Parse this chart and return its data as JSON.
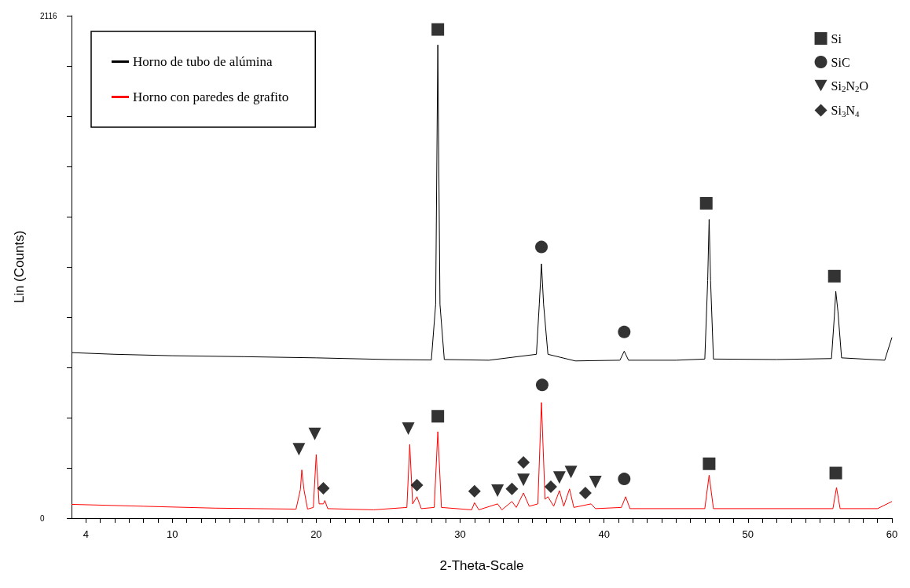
{
  "chart_data": {
    "type": "line",
    "xlabel": "2-Theta-Scale",
    "ylabel": "Lin (Counts)",
    "xlim": [
      3,
      60
    ],
    "ylim": [
      0,
      2116
    ],
    "xticks": [
      4,
      {
        "value": 5,
        "label": null
      },
      {
        "value": 6,
        "label": null
      },
      {
        "value": 7,
        "label": null
      },
      {
        "value": 8,
        "label": null
      },
      {
        "value": 9,
        "label": null
      },
      10,
      {
        "value": 11,
        "label": null
      },
      {
        "value": 12,
        "label": null
      },
      {
        "value": 13,
        "label": null
      },
      {
        "value": 14,
        "label": null
      },
      {
        "value": 15,
        "label": null
      },
      {
        "value": 16,
        "label": null
      },
      {
        "value": 17,
        "label": null
      },
      {
        "value": 18,
        "label": null
      },
      {
        "value": 19,
        "label": null
      },
      20,
      {
        "value": 21,
        "label": null
      },
      {
        "value": 22,
        "label": null
      },
      {
        "value": 23,
        "label": null
      },
      {
        "value": 24,
        "label": null
      },
      {
        "value": 25,
        "label": null
      },
      {
        "value": 26,
        "label": null
      },
      {
        "value": 27,
        "label": null
      },
      {
        "value": 28,
        "label": null
      },
      {
        "value": 29,
        "label": null
      },
      30,
      {
        "value": 31,
        "label": null
      },
      {
        "value": 32,
        "label": null
      },
      {
        "value": 33,
        "label": null
      },
      {
        "value": 34,
        "label": null
      },
      {
        "value": 35,
        "label": null
      },
      {
        "value": 36,
        "label": null
      },
      {
        "value": 37,
        "label": null
      },
      {
        "value": 38,
        "label": null
      },
      {
        "value": 39,
        "label": null
      },
      40,
      {
        "value": 41,
        "label": null
      },
      {
        "value": 42,
        "label": null
      },
      {
        "value": 43,
        "label": null
      },
      {
        "value": 44,
        "label": null
      },
      {
        "value": 45,
        "label": null
      },
      {
        "value": 46,
        "label": null
      },
      {
        "value": 47,
        "label": null
      },
      {
        "value": 48,
        "label": null
      },
      {
        "value": 49,
        "label": null
      },
      50,
      {
        "value": 51,
        "label": null
      },
      {
        "value": 52,
        "label": null
      },
      {
        "value": 53,
        "label": null
      },
      {
        "value": 54,
        "label": null
      },
      {
        "value": 55,
        "label": null
      },
      {
        "value": 56,
        "label": null
      },
      {
        "value": 57,
        "label": null
      },
      {
        "value": 58,
        "label": null
      },
      {
        "value": 59,
        "label": null
      },
      60
    ],
    "yticks": [
      0,
      {
        "value": 211.6,
        "label": null
      },
      {
        "value": 423.2,
        "label": null
      },
      {
        "value": 634.8,
        "label": null
      },
      {
        "value": 846.4,
        "label": null
      },
      {
        "value": 1058,
        "label": null
      },
      {
        "value": 1269.6,
        "label": null
      },
      {
        "value": 1481.2,
        "label": null
      },
      {
        "value": 1692.8,
        "label": null
      },
      {
        "value": 1904.4,
        "label": null
      },
      2116
    ],
    "grid": false,
    "legend": "top left",
    "series": [
      {
        "name": "Horno de tubo de alúmina",
        "color": "#000000",
        "x": [
          3,
          6,
          10,
          15,
          20,
          25,
          28.0,
          28.3,
          28.45,
          28.6,
          28.9,
          32,
          35.3,
          35.5,
          35.65,
          35.8,
          36.1,
          38,
          41.1,
          41.4,
          41.7,
          45,
          47.0,
          47.2,
          47.3,
          47.4,
          47.6,
          52,
          55.8,
          56.0,
          56.1,
          56.25,
          56.5,
          59.5,
          60
        ],
        "values": [
          697,
          690,
          684,
          680,
          675,
          668,
          666,
          900,
          1993,
          900,
          668,
          665,
          690,
          900,
          1071,
          900,
          690,
          662,
          665,
          703,
          665,
          665,
          670,
          1000,
          1258,
          1000,
          670,
          668,
          672,
          850,
          955,
          870,
          675,
          665,
          761
        ]
      },
      {
        "name": "Horno con paredes de grafito",
        "color": "#ff0000",
        "x": [
          3,
          8,
          13,
          18.6,
          18.9,
          19.0,
          19.15,
          19.4,
          19.8,
          20.0,
          20.2,
          20.5,
          20.6,
          20.8,
          24,
          26.3,
          26.5,
          26.7,
          27.0,
          27.3,
          28.2,
          28.45,
          28.7,
          30.8,
          31.0,
          31.3,
          32.6,
          32.9,
          33.6,
          33.9,
          34.4,
          34.8,
          35.4,
          35.65,
          35.9,
          36.1,
          36.5,
          36.9,
          37.2,
          37.6,
          37.9,
          39.1,
          39.4,
          41.2,
          41.5,
          41.8,
          47.0,
          47.3,
          47.6,
          55.9,
          56.15,
          56.4,
          59,
          60
        ],
        "values": [
          58,
          50,
          42,
          38,
          120,
          203,
          120,
          38,
          45,
          268,
          60,
          60,
          74,
          40,
          35,
          45,
          310,
          60,
          90,
          40,
          45,
          364,
          45,
          35,
          65,
          35,
          60,
          35,
          70,
          45,
          106,
          50,
          60,
          487,
          80,
          90,
          50,
          116,
          50,
          123,
          45,
          60,
          40,
          45,
          90,
          40,
          40,
          181,
          40,
          40,
          129,
          40,
          40,
          70
        ]
      },
      {
        "name": "Si",
        "type": "scatter",
        "marker": "square",
        "color": "#000000",
        "x": [
          28.45,
          47.1,
          56.0,
          28.45,
          47.3,
          56.1
        ],
        "values": [
          2058,
          1326,
          1019,
          429,
          229,
          190
        ]
      },
      {
        "name": "SiC",
        "type": "scatter",
        "marker": "circle",
        "color": "#000000",
        "x": [
          35.65,
          41.4,
          35.7,
          41.4
        ],
        "values": [
          1142,
          784,
          561,
          165
        ]
      },
      {
        "name": "Si$_{2}$N$_{2}$O",
        "type": "scatter",
        "marker": "triangle",
        "color": "#000000",
        "x": [
          18.8,
          19.9,
          26.4,
          32.6,
          34.4,
          36.9,
          37.7,
          39.4
        ],
        "values": [
          290,
          355,
          377,
          116,
          161,
          171,
          194,
          152
        ]
      },
      {
        "name": "Si$_{3}$N$_{4}$",
        "type": "scatter",
        "marker": "diamond",
        "color": "#000000",
        "x": [
          20.5,
          27.0,
          31.0,
          33.6,
          34.4,
          36.3,
          38.7
        ],
        "values": [
          126,
          139,
          113,
          123,
          235,
          132,
          106
        ]
      }
    ]
  }
}
